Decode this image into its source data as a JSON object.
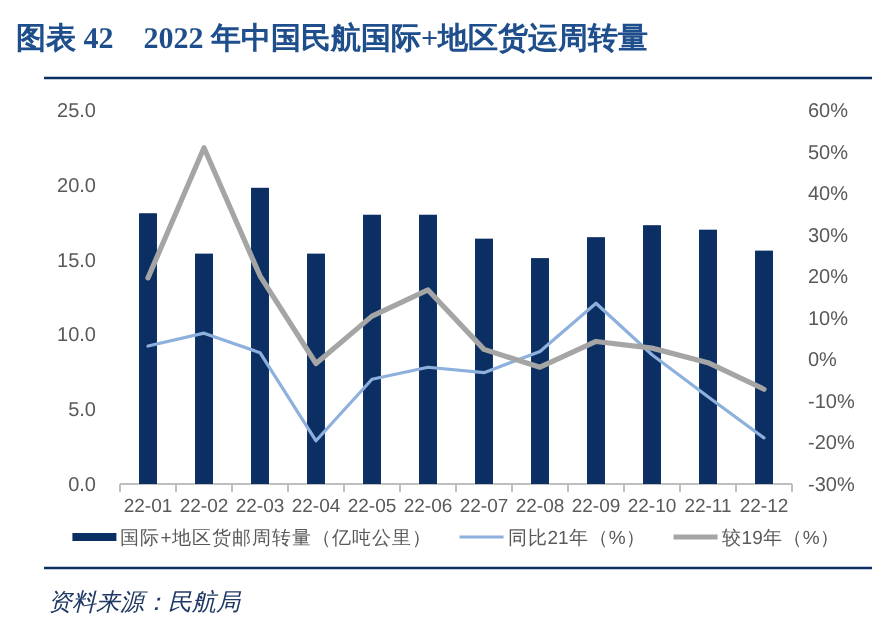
{
  "chart_data": {
    "type": "bar",
    "title": "图表 42　2022 年中国民航国际+地区货运周转量",
    "categories": [
      "22-01",
      "22-02",
      "22-03",
      "22-04",
      "22-05",
      "22-06",
      "22-07",
      "22-08",
      "22-09",
      "22-10",
      "22-11",
      "22-12"
    ],
    "series": [
      {
        "name": "国际+地区货邮周转量（亿吨公里）",
        "color": "#0b2f63",
        "values": [
          18.1,
          15.4,
          19.8,
          15.4,
          18.0,
          18.0,
          16.4,
          15.1,
          16.5,
          17.3,
          17.0,
          15.6
        ]
      },
      {
        "name": "同比21年（%）",
        "type": "line",
        "axis": "y2",
        "color": "#8eb0dc",
        "values": [
          3.2,
          6.3,
          1.6,
          -19.6,
          -4.8,
          -1.9,
          -3.2,
          1.9,
          13.5,
          1.1,
          -9.0,
          -18.9
        ]
      },
      {
        "name": "较19年（%）",
        "type": "line",
        "axis": "y2",
        "color": "#a5a5a5",
        "values": [
          19.6,
          50.9,
          20.1,
          -1.0,
          10.4,
          16.7,
          2.4,
          -1.9,
          4.3,
          2.7,
          -0.8,
          -7.2
        ]
      }
    ],
    "ylim": [
      0,
      25
    ],
    "yticks": [
      {
        "value": 0,
        "label": "0.0"
      },
      {
        "value": 5,
        "label": "5.0"
      },
      {
        "value": 10,
        "label": "10.0"
      },
      {
        "value": 15,
        "label": "15.0"
      },
      {
        "value": 20,
        "label": "20.0"
      },
      {
        "value": 25,
        "label": "25.0"
      }
    ],
    "y2lim": [
      -30,
      60
    ],
    "y2ticks": [
      {
        "value": -30,
        "label": "-30%"
      },
      {
        "value": -20,
        "label": "-20%"
      },
      {
        "value": -10,
        "label": "-10%"
      },
      {
        "value": 0,
        "label": "0%"
      },
      {
        "value": 10,
        "label": "10%"
      },
      {
        "value": 20,
        "label": "20%"
      },
      {
        "value": 30,
        "label": "30%"
      },
      {
        "value": 40,
        "label": "40%"
      },
      {
        "value": 50,
        "label": "50%"
      },
      {
        "value": 60,
        "label": "60%"
      }
    ],
    "legend": "bottom",
    "annotations": [
      "资料来源：民航局"
    ]
  }
}
